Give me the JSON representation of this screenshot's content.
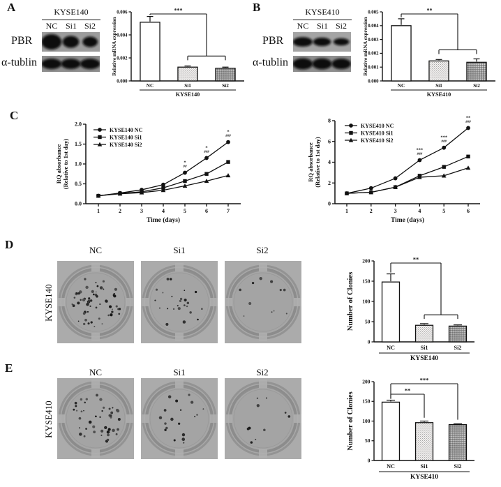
{
  "colors": {
    "text": "#111111",
    "axis": "#111111",
    "bar_nc_fill": "#ffffff",
    "bar_si1_fill": "light-stipple",
    "bar_si2_fill": "dark-stipple",
    "well_background": "#ababab",
    "band_color": "#0a0a0a"
  },
  "figure": {
    "panels": {
      "A": {
        "label": "A",
        "blot": {
          "cell_line": "KYSE140",
          "lanes": [
            "NC",
            "Si1",
            "Si2"
          ],
          "rows": [
            {
              "label": "PBR",
              "band_intensities": [
                1.0,
                0.58,
                0.42
              ]
            },
            {
              "label": "α-tublin",
              "band_intensities": [
                1.0,
                0.95,
                1.0
              ]
            }
          ]
        }
      },
      "B": {
        "label": "B",
        "blot": {
          "cell_line": "KYSE410",
          "lanes": [
            "NC",
            "Si1",
            "Si2"
          ],
          "rows": [
            {
              "label": "PBR",
              "band_intensities": [
                0.95,
                0.75,
                0.5
              ]
            },
            {
              "label": "α-tublin",
              "band_intensities": [
                1.0,
                0.95,
                0.9
              ]
            }
          ]
        }
      },
      "C": {
        "label": "C"
      },
      "D": {
        "label": "D",
        "row_label": "KYSE140",
        "wells": [
          {
            "label": "NC",
            "colony_count": 60
          },
          {
            "label": "Si1",
            "colony_count": 24
          },
          {
            "label": "Si2",
            "colony_count": 11
          }
        ]
      },
      "E": {
        "label": "E",
        "row_label": "KYSE410",
        "wells": [
          {
            "label": "NC",
            "colony_count": 45
          },
          {
            "label": "Si1",
            "colony_count": 20
          },
          {
            "label": "Si2",
            "colony_count": 10
          }
        ]
      }
    }
  },
  "chart_data": [
    {
      "panel": "A",
      "type": "bar",
      "ylabel": "Relative mRNA expression",
      "xlabel": "KYSE140",
      "categories": [
        "NC",
        "Si1",
        "Si2"
      ],
      "values": [
        0.0051,
        0.0012,
        0.0011
      ],
      "errors": [
        0.0005,
        0.0001,
        0.0001
      ],
      "ylim": [
        0,
        0.006
      ],
      "yticks": [
        0,
        0.002,
        0.004,
        0.006
      ],
      "ytick_labels": [
        "0.000",
        "0.002",
        "0.004",
        "0.006"
      ],
      "bar_styles": [
        "white",
        "stipple-light",
        "stipple-dark"
      ],
      "significance": {
        "style": "nested",
        "label": "***"
      }
    },
    {
      "panel": "B",
      "type": "bar",
      "ylabel": "Relative mRNA expression",
      "xlabel": "KYSE410",
      "categories": [
        "NC",
        "Si1",
        "Si2"
      ],
      "values": [
        0.004,
        0.00145,
        0.00135
      ],
      "errors": [
        0.0005,
        0.0001,
        0.00025
      ],
      "ylim": [
        0,
        0.005
      ],
      "yticks": [
        0,
        0.001,
        0.002,
        0.003,
        0.004,
        0.005
      ],
      "ytick_labels": [
        "0.000",
        "0.001",
        "0.002",
        "0.003",
        "0.004",
        "0.005"
      ],
      "bar_styles": [
        "white",
        "stipple-light",
        "stipple-dark"
      ],
      "significance": {
        "style": "nested",
        "label": "**"
      }
    },
    {
      "panel": "C-left",
      "type": "line",
      "ylabel": [
        "RQ absorbance",
        "(Relative to 1st day)"
      ],
      "xlabel": "Time (days)",
      "x": [
        1,
        2,
        3,
        4,
        5,
        6,
        7
      ],
      "ylim": [
        0,
        2.0
      ],
      "yticks": [
        0,
        0.5,
        1.0,
        1.5,
        2.0
      ],
      "ytick_labels": [
        "0.0",
        "0.5",
        "1.0",
        "1.5",
        "2.0"
      ],
      "legend_position": "top-left",
      "series": [
        {
          "name": "KYSE140 NC",
          "marker": "circle",
          "values": [
            0.2,
            0.27,
            0.35,
            0.48,
            0.78,
            1.15,
            1.55
          ]
        },
        {
          "name": "KYSE140 Si1",
          "marker": "square",
          "values": [
            0.2,
            0.26,
            0.3,
            0.4,
            0.57,
            0.75,
            1.05
          ]
        },
        {
          "name": "KYSE140 Si2",
          "marker": "triangle",
          "values": [
            0.2,
            0.25,
            0.28,
            0.34,
            0.45,
            0.57,
            0.71
          ]
        }
      ],
      "annotations": [
        {
          "x": 5,
          "lines": [
            "*",
            "##"
          ]
        },
        {
          "x": 6,
          "lines": [
            "*",
            "###"
          ]
        },
        {
          "x": 7,
          "lines": [
            "*",
            "###"
          ]
        }
      ]
    },
    {
      "panel": "C-right",
      "type": "line",
      "ylabel": [
        "RQ absorbance",
        "(Relative to 1st day)"
      ],
      "xlabel": "Time (days)",
      "x": [
        1,
        2,
        3,
        4,
        5,
        6
      ],
      "ylim": [
        0,
        8
      ],
      "yticks": [
        0,
        2,
        4,
        6,
        8
      ],
      "ytick_labels": [
        "0",
        "2",
        "4",
        "6",
        "8"
      ],
      "legend_position": "top-left",
      "series": [
        {
          "name": "KYSE410 NC",
          "marker": "circle",
          "values": [
            1.0,
            1.5,
            2.45,
            4.2,
            5.4,
            7.3
          ]
        },
        {
          "name": "KYSE410 Si1",
          "marker": "square",
          "values": [
            1.0,
            1.1,
            1.6,
            2.7,
            3.55,
            4.55
          ]
        },
        {
          "name": "KYSE410 Si2",
          "marker": "triangle",
          "values": [
            1.0,
            1.1,
            1.6,
            2.55,
            2.7,
            3.45
          ]
        }
      ],
      "annotations": [
        {
          "x": 4,
          "lines": [
            "***",
            "###"
          ]
        },
        {
          "x": 5,
          "lines": [
            "***",
            "###"
          ]
        },
        {
          "x": 6,
          "lines": [
            "**",
            "###"
          ]
        }
      ]
    },
    {
      "panel": "D",
      "type": "bar",
      "ylabel": "Number of Clonies",
      "xlabel": "KYSE140",
      "categories": [
        "NC",
        "Si1",
        "Si2"
      ],
      "values": [
        148,
        41,
        39
      ],
      "errors": [
        20,
        4,
        3
      ],
      "ylim": [
        0,
        200
      ],
      "yticks": [
        0,
        50,
        100,
        150,
        200
      ],
      "ytick_labels": [
        "0",
        "50",
        "100",
        "150",
        "200"
      ],
      "bar_styles": [
        "white",
        "stipple-light",
        "stipple-dark"
      ],
      "significance": {
        "style": "nested",
        "label": "**"
      }
    },
    {
      "panel": "E",
      "type": "bar",
      "ylabel": "Number of Clonies",
      "xlabel": "KYSE410",
      "categories": [
        "NC",
        "Si1",
        "Si2"
      ],
      "values": [
        148,
        96,
        91
      ],
      "errors": [
        5,
        4,
        2
      ],
      "ylim": [
        0,
        200
      ],
      "yticks": [
        0,
        50,
        100,
        150,
        200
      ],
      "ytick_labels": [
        "0",
        "50",
        "100",
        "150",
        "200"
      ],
      "bar_styles": [
        "white",
        "stipple-light",
        "stipple-dark"
      ],
      "significance": {
        "style": "pairs",
        "items": [
          {
            "a": 0,
            "b": 1,
            "label": "**"
          },
          {
            "a": 0,
            "b": 2,
            "label": "***"
          }
        ]
      }
    }
  ]
}
